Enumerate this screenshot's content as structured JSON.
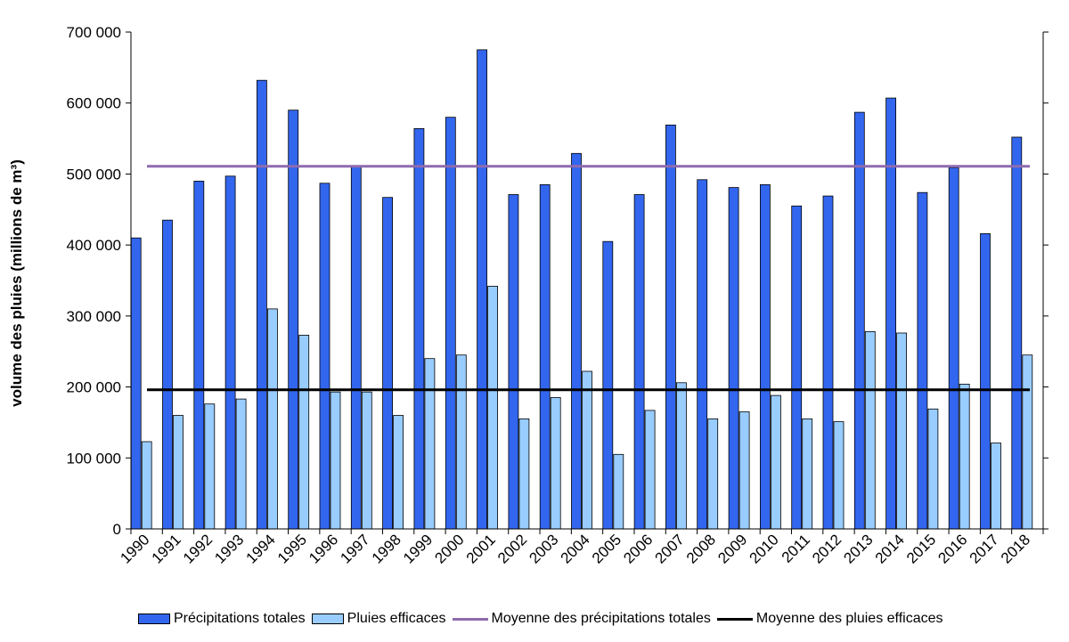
{
  "chart_data": {
    "type": "bar",
    "title": "",
    "ylabel": "volume des pluies (millions de m³)",
    "xlabel": "",
    "ylim": [
      0,
      700000
    ],
    "yticks": [
      0,
      100000,
      200000,
      300000,
      400000,
      500000,
      600000,
      700000
    ],
    "ytick_labels": [
      "0",
      "100 000",
      "200 000",
      "300 000",
      "400 000",
      "500 000",
      "600 000",
      "700 000"
    ],
    "categories": [
      "1990",
      "1991",
      "1992",
      "1993",
      "1994",
      "1995",
      "1996",
      "1997",
      "1998",
      "1999",
      "2000",
      "2001",
      "2002",
      "2003",
      "2004",
      "2005",
      "2006",
      "2007",
      "2008",
      "2009",
      "2010",
      "2011",
      "2012",
      "2013",
      "2014",
      "2015",
      "2016",
      "2017",
      "2018"
    ],
    "series": [
      {
        "name": "Précipitations totales",
        "color": "#3366ee",
        "values": [
          410000,
          435000,
          490000,
          497000,
          632000,
          590000,
          487000,
          510000,
          467000,
          564000,
          580000,
          675000,
          471000,
          485000,
          529000,
          405000,
          471000,
          569000,
          492000,
          481000,
          485000,
          455000,
          469000,
          587000,
          607000,
          474000,
          509000,
          416000,
          552000
        ]
      },
      {
        "name": "Pluies efficaces",
        "color": "#99ccff",
        "values": [
          123000,
          160000,
          176000,
          183000,
          310000,
          273000,
          193000,
          193000,
          160000,
          240000,
          245000,
          342000,
          155000,
          185000,
          222000,
          105000,
          167000,
          206000,
          155000,
          165000,
          188000,
          155000,
          151000,
          278000,
          276000,
          169000,
          204000,
          121000,
          245000
        ]
      }
    ],
    "lines": [
      {
        "name": "Moyenne des précipitations totales",
        "color": "#8e6bb0",
        "value": 511000
      },
      {
        "name": "Moyenne des pluies efficaces",
        "color": "#000000",
        "value": 196000
      }
    ],
    "legend_position": "bottom",
    "grid": false
  }
}
